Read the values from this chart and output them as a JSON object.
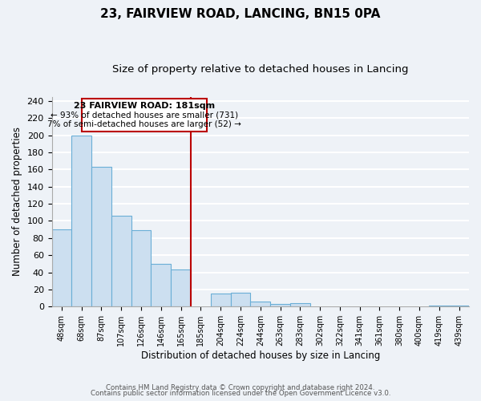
{
  "title1": "23, FAIRVIEW ROAD, LANCING, BN15 0PA",
  "title2": "Size of property relative to detached houses in Lancing",
  "xlabel": "Distribution of detached houses by size in Lancing",
  "ylabel": "Number of detached properties",
  "categories": [
    "48sqm",
    "68sqm",
    "87sqm",
    "107sqm",
    "126sqm",
    "146sqm",
    "165sqm",
    "185sqm",
    "204sqm",
    "224sqm",
    "244sqm",
    "263sqm",
    "283sqm",
    "302sqm",
    "322sqm",
    "341sqm",
    "361sqm",
    "380sqm",
    "400sqm",
    "419sqm",
    "439sqm"
  ],
  "values": [
    90,
    200,
    163,
    106,
    89,
    50,
    43,
    0,
    15,
    16,
    6,
    3,
    4,
    0,
    0,
    0,
    0,
    0,
    0,
    1,
    1
  ],
  "bar_color": "#ccdff0",
  "bar_edge_color": "#6aaed6",
  "vline_color": "#bb0000",
  "annotation_title": "23 FAIRVIEW ROAD: 181sqm",
  "annotation_line1": "← 93% of detached houses are smaller (731)",
  "annotation_line2": "7% of semi-detached houses are larger (52) →",
  "box_edge_color": "#bb0000",
  "ylim": [
    0,
    245
  ],
  "yticks": [
    0,
    20,
    40,
    60,
    80,
    100,
    120,
    140,
    160,
    180,
    200,
    220,
    240
  ],
  "footer1": "Contains HM Land Registry data © Crown copyright and database right 2024.",
  "footer2": "Contains public sector information licensed under the Open Government Licence v3.0.",
  "bg_color": "#eef2f7",
  "plot_bg_color": "#eef2f7",
  "grid_color": "#ffffff",
  "title1_fontsize": 11,
  "title2_fontsize": 9.5
}
